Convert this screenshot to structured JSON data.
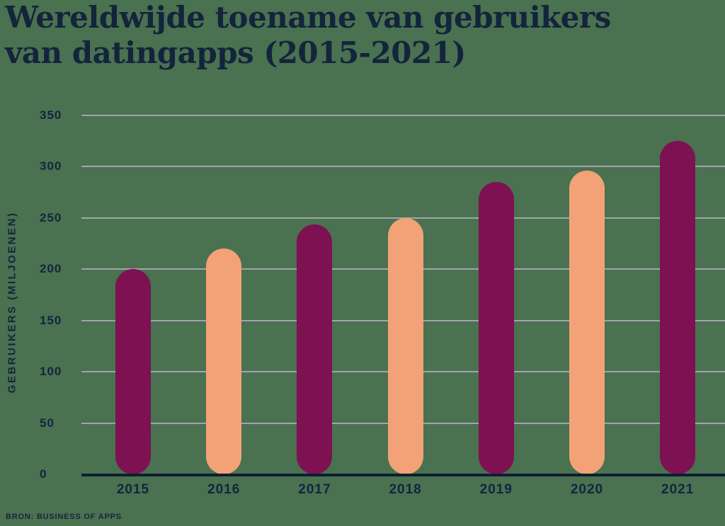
{
  "page": {
    "title_line1": "Wereldwijde toename van gebruikers",
    "title_line2": "van datingapps (2015-2021)",
    "source": "BRON: BUSINESS OF APPS"
  },
  "colors": {
    "background": "#4A7150",
    "text_navy": "#13253E",
    "axis_line": "#0D1F33",
    "gridline": "#A2A5AB",
    "bar_dark_magenta": "#7D1152",
    "bar_light_orange": "#F2A276"
  },
  "chart_data": {
    "type": "bar",
    "title": "Wereldwijde toename van gebruikers van datingapps (2015-2021)",
    "categories": [
      "2015",
      "2016",
      "2017",
      "2018",
      "2019",
      "2020",
      "2021"
    ],
    "values": [
      200,
      220,
      244,
      250,
      285,
      296,
      325
    ],
    "series_name": "Gebruikers van datingapps wereldwijd (miljoenen)",
    "xlabel": "",
    "ylabel": "GEBRUIKERS (MILJOENEN)",
    "ylim": [
      0,
      350
    ],
    "y_ticks": [
      0,
      50,
      100,
      150,
      200,
      250,
      300,
      350
    ],
    "grid": "horizontal",
    "legend": "none",
    "bar_style": "rounded-pill",
    "bar_colors": [
      "#7D1152",
      "#F2A276",
      "#7D1152",
      "#F2A276",
      "#7D1152",
      "#F2A276",
      "#7D1152"
    ],
    "source": "BRON: BUSINESS OF APPS"
  }
}
